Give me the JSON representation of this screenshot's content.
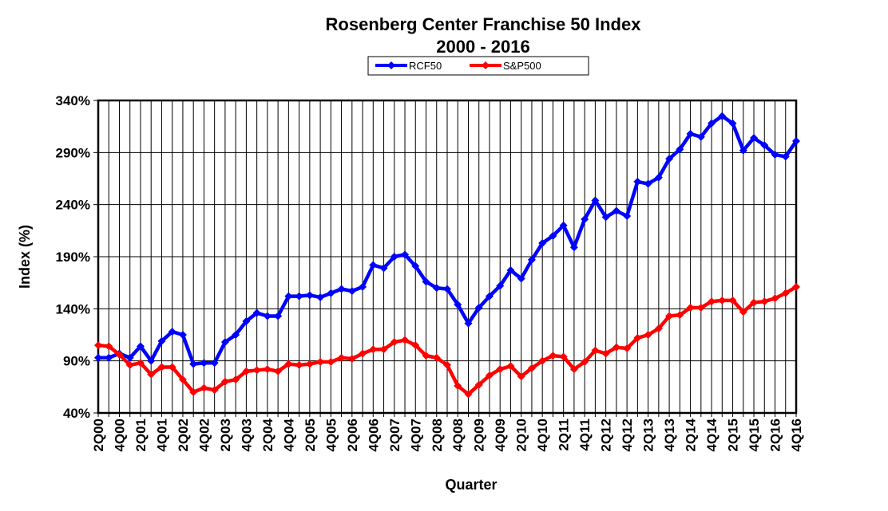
{
  "chart_data": {
    "type": "line",
    "title": "Rosenberg Center Franchise 50 Index",
    "subtitle": "2000 - 2016",
    "x_label": "Quarter",
    "y_label": "Index (%)",
    "categories": [
      "2Q00",
      null,
      "4Q00",
      null,
      "2Q01",
      null,
      "4Q01",
      null,
      "2Q02",
      null,
      "4Q02",
      null,
      "2Q03",
      null,
      "4Q03",
      null,
      "2Q04",
      null,
      "4Q04",
      null,
      "2Q05",
      null,
      "4Q05",
      null,
      "2Q06",
      null,
      "4Q06",
      null,
      "2Q07",
      null,
      "4Q07",
      null,
      "2Q08",
      null,
      "4Q08",
      null,
      "2Q09",
      null,
      "4Q09",
      null,
      "2Q10",
      null,
      "4Q10",
      null,
      "2Q11",
      null,
      "4Q11",
      null,
      "2Q12",
      null,
      "4Q12",
      null,
      "2Q13",
      null,
      "4Q13",
      null,
      "2Q14",
      null,
      "4Q14",
      null,
      "2Q15",
      null,
      "4Q15",
      null,
      "2Q16",
      null,
      "4Q16"
    ],
    "series": [
      {
        "name": "RCF50",
        "color": "#0000ff",
        "values": [
          93,
          93,
          97,
          93,
          104,
          90,
          109,
          118,
          115,
          87,
          88,
          88,
          108,
          115,
          128,
          136,
          133,
          133,
          152,
          152,
          153,
          151,
          155,
          159,
          157,
          161,
          182,
          179,
          190,
          192,
          181,
          166,
          160,
          159,
          144,
          126,
          141,
          152,
          162,
          177,
          169,
          187,
          203,
          210,
          220,
          199,
          226,
          244,
          228,
          234,
          229,
          262,
          260,
          266,
          284,
          293,
          308,
          305,
          318,
          325,
          318,
          292,
          304,
          297,
          288,
          286,
          301
        ]
      },
      {
        "name": "S&P500",
        "color": "#ff0000",
        "values": [
          105,
          104,
          96,
          86,
          88,
          77,
          84,
          84,
          72,
          60,
          64,
          62,
          70,
          72,
          80,
          81,
          82,
          80,
          87,
          86,
          87,
          89,
          89,
          93,
          92,
          97,
          101,
          101,
          108,
          110,
          105,
          95,
          93,
          86,
          66,
          58,
          67,
          76,
          82,
          85,
          75,
          83,
          90,
          95,
          94,
          82,
          89,
          100,
          97,
          103,
          102,
          112,
          115,
          121,
          133,
          134,
          141,
          141,
          147,
          148,
          148,
          137,
          146,
          147,
          150,
          155,
          161
        ]
      }
    ],
    "ylim": [
      40,
      340
    ],
    "yticks": [
      {
        "value": 40,
        "label": "40%"
      },
      {
        "value": 90,
        "label": "90%"
      },
      {
        "value": 140,
        "label": "140%"
      },
      {
        "value": 190,
        "label": "190%"
      },
      {
        "value": 240,
        "label": "240%"
      },
      {
        "value": 290,
        "label": "290%"
      },
      {
        "value": 340,
        "label": "340%"
      }
    ],
    "grid": true,
    "legend": "top"
  }
}
